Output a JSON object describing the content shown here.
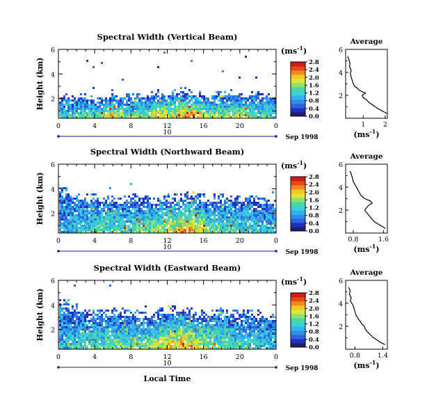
{
  "figure": {
    "xlabel": "Local Time",
    "date_label": "Sep 1998",
    "day_label": "10",
    "colorbar_unit": "(ms",
    "colorbar_exp": "-1",
    "avg_title": "Average",
    "avg_xunit": "(ms",
    "avg_xexp": "-1",
    "ylabel": "Height (km)"
  },
  "colors": {
    "scale": [
      "#20206a",
      "#2030c0",
      "#2f62e0",
      "#2f8ee8",
      "#34b4ee",
      "#38d2d8",
      "#4ad6a0",
      "#8ee070",
      "#d8e838",
      "#f6c824",
      "#f08a1c",
      "#e84a16",
      "#d01c16"
    ]
  },
  "chart_data": [
    {
      "type": "heatmap",
      "title": "Spectral Width (Vertical Beam)",
      "xlabel": "Local Time",
      "ylabel": "Height (km)",
      "x_ticks": [
        "0",
        "4",
        "8",
        "12",
        "16",
        "20",
        "0"
      ],
      "y_ticks": [
        "2",
        "4",
        "6"
      ],
      "xlim": [
        0,
        24
      ],
      "ylim": [
        0.4,
        6
      ],
      "colorbar_ticks": [
        "0.0",
        "0.4",
        "0.8",
        "1.2",
        "1.6",
        "2.0",
        "2.4",
        "2.8"
      ],
      "colorbar_range": [
        0,
        2.8
      ],
      "echo_top_km": [
        2.1,
        2.0,
        2.1,
        2.0,
        1.9,
        2.1,
        2.0,
        2.1,
        2.2,
        2.1,
        2.3,
        2.2,
        2.4,
        2.5,
        2.4,
        2.3,
        2.2,
        2.3,
        2.4,
        2.3,
        2.2,
        2.3,
        2.2,
        2.1
      ],
      "intensity": [
        0.3,
        0.35,
        0.35,
        0.45,
        0.5,
        0.7,
        0.55,
        0.4,
        0.45,
        0.55,
        0.65,
        0.7,
        0.6,
        0.75,
        0.85,
        0.7,
        0.5,
        0.55,
        0.45,
        0.55,
        0.6,
        0.45,
        0.35,
        0.3
      ],
      "average_profile": {
        "title": "Average",
        "xlabel": "(ms-1)",
        "x_ticks": [
          "1",
          "2"
        ],
        "xlim": [
          0.2,
          2.1
        ],
        "ylim": [
          0,
          6
        ],
        "y_ticks": [
          "2",
          "4",
          "6"
        ],
        "height_km": [
          0.4,
          0.6,
          0.8,
          1.0,
          1.2,
          1.4,
          1.6,
          1.8,
          2.0,
          2.2,
          2.4,
          2.6,
          2.8,
          3.0,
          3.3,
          3.6,
          3.9,
          4.2,
          4.5,
          4.8,
          5.1,
          5.4
        ],
        "width_ms": [
          2.1,
          1.9,
          1.7,
          1.55,
          1.4,
          1.25,
          1.15,
          1.0,
          0.95,
          1.1,
          0.85,
          0.75,
          0.6,
          0.55,
          0.5,
          0.45,
          0.42,
          0.45,
          0.38,
          0.4,
          0.35,
          0.3
        ]
      }
    },
    {
      "type": "heatmap",
      "title": "Spectral Width (Northward Beam)",
      "xlabel": "Local Time",
      "ylabel": "Height (km)",
      "x_ticks": [
        "0",
        "4",
        "8",
        "12",
        "16",
        "20",
        "0"
      ],
      "y_ticks": [
        "2",
        "4",
        "6"
      ],
      "xlim": [
        0,
        24
      ],
      "ylim": [
        0.4,
        6
      ],
      "colorbar_ticks": [
        "0.0",
        "0.4",
        "0.8",
        "1.2",
        "1.6",
        "2.0",
        "2.4",
        "2.8"
      ],
      "colorbar_range": [
        0,
        2.8
      ],
      "echo_top_km": [
        3.6,
        3.4,
        3.2,
        3.1,
        3.0,
        3.0,
        2.9,
        3.0,
        3.1,
        3.0,
        2.9,
        3.0,
        3.1,
        3.2,
        3.3,
        3.1,
        3.0,
        3.1,
        3.2,
        3.0,
        2.9,
        3.0,
        2.9,
        2.8
      ],
      "intensity": [
        0.2,
        0.25,
        0.3,
        0.35,
        0.4,
        0.45,
        0.4,
        0.35,
        0.4,
        0.45,
        0.5,
        0.55,
        0.6,
        0.7,
        0.75,
        0.6,
        0.45,
        0.4,
        0.35,
        0.4,
        0.35,
        0.3,
        0.25,
        0.2
      ],
      "average_profile": {
        "title": "Average",
        "xlabel": "(ms-1)",
        "x_ticks": [
          "0.8",
          "1.6"
        ],
        "xlim": [
          0.6,
          1.7
        ],
        "ylim": [
          0,
          6
        ],
        "y_ticks": [
          "2",
          "4",
          "6"
        ],
        "height_km": [
          0.4,
          0.6,
          0.8,
          1.0,
          1.2,
          1.4,
          1.6,
          1.8,
          2.0,
          2.2,
          2.4,
          2.6,
          2.8,
          3.0,
          3.3,
          3.6,
          3.9,
          4.2,
          4.5,
          4.8,
          5.1,
          5.4
        ],
        "width_ms": [
          1.65,
          1.55,
          1.45,
          1.35,
          1.3,
          1.25,
          1.2,
          1.15,
          1.1,
          1.15,
          1.2,
          1.3,
          1.25,
          1.1,
          1.0,
          0.95,
          0.9,
          0.85,
          0.8,
          0.78,
          0.75,
          0.72
        ]
      }
    },
    {
      "type": "heatmap",
      "title": "Spectral Width (Eastward Beam)",
      "xlabel": "Local Time",
      "ylabel": "Height (km)",
      "x_ticks": [
        "0",
        "4",
        "8",
        "12",
        "16",
        "20",
        "0"
      ],
      "y_ticks": [
        "2",
        "4",
        "6"
      ],
      "xlim": [
        0,
        24
      ],
      "ylim": [
        0.4,
        6
      ],
      "colorbar_ticks": [
        "0.0",
        "0.4",
        "0.8",
        "1.2",
        "1.6",
        "2.0",
        "2.4",
        "2.8"
      ],
      "colorbar_range": [
        0,
        2.8
      ],
      "echo_top_km": [
        3.9,
        3.6,
        3.3,
        3.2,
        3.1,
        3.2,
        3.3,
        3.2,
        3.1,
        3.0,
        3.2,
        3.3,
        3.4,
        3.5,
        3.3,
        3.1,
        3.2,
        3.3,
        3.2,
        3.1,
        3.2,
        3.1,
        3.0,
        2.9
      ],
      "intensity": [
        0.2,
        0.25,
        0.3,
        0.35,
        0.4,
        0.45,
        0.4,
        0.4,
        0.45,
        0.5,
        0.55,
        0.6,
        0.65,
        0.7,
        0.7,
        0.6,
        0.55,
        0.45,
        0.4,
        0.4,
        0.35,
        0.3,
        0.25,
        0.2
      ],
      "average_profile": {
        "title": "Average",
        "xlabel": "(ms-1)",
        "x_ticks": [
          "0.8",
          "1.4"
        ],
        "xlim": [
          0.6,
          1.5
        ],
        "ylim": [
          0,
          6
        ],
        "y_ticks": [
          "2",
          "4",
          "6"
        ],
        "height_km": [
          0.4,
          0.6,
          0.8,
          1.0,
          1.2,
          1.4,
          1.6,
          1.8,
          2.0,
          2.2,
          2.4,
          2.6,
          2.8,
          3.0,
          3.3,
          3.6,
          3.9,
          4.2,
          4.5,
          4.8,
          5.1,
          5.4
        ],
        "width_ms": [
          1.45,
          1.35,
          1.28,
          1.2,
          1.15,
          1.1,
          1.05,
          1.02,
          1.0,
          0.95,
          0.92,
          0.88,
          0.85,
          0.82,
          0.8,
          0.78,
          0.75,
          0.7,
          0.72,
          0.68,
          0.7,
          0.66
        ]
      }
    }
  ]
}
